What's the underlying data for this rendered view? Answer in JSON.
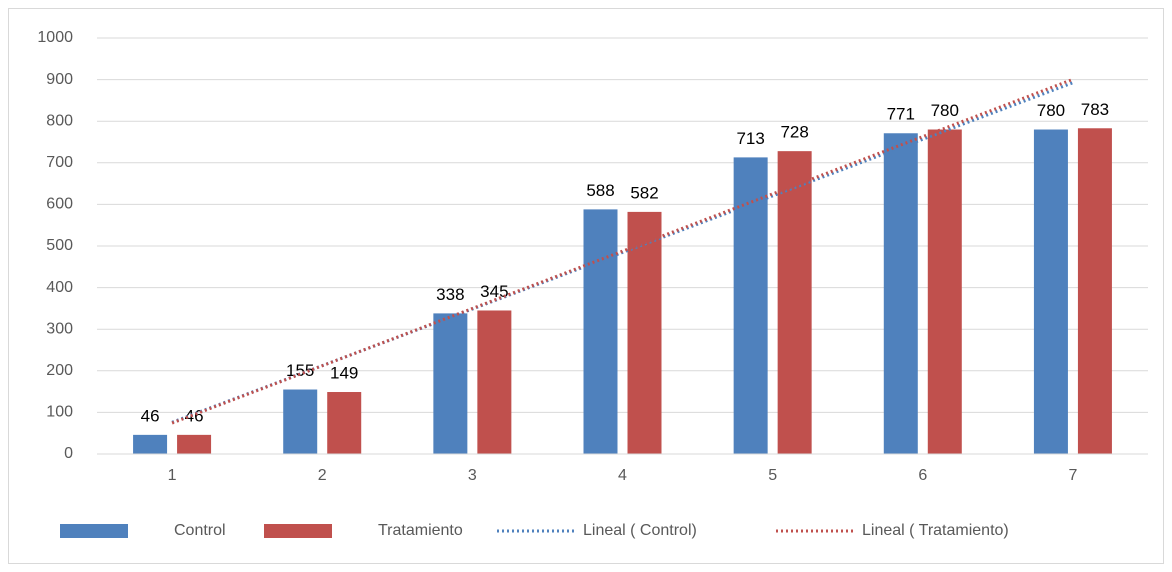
{
  "chart_data": {
    "type": "bar",
    "categories": [
      "1",
      "2",
      "3",
      "4",
      "5",
      "6",
      "7"
    ],
    "series": [
      {
        "name": "Control",
        "color": "#4f81bd",
        "values": [
          46,
          155,
          338,
          588,
          713,
          771,
          780
        ],
        "trendline": {
          "name": "Lineal ( Control)"
        }
      },
      {
        "name": "Tratamiento",
        "color": "#c0504d",
        "values": [
          46,
          149,
          345,
          582,
          728,
          780,
          783
        ],
        "trendline": {
          "name": "Lineal ( Tratamiento)"
        }
      }
    ],
    "ylim": [
      0,
      1000
    ],
    "yticks": [
      0,
      100,
      200,
      300,
      400,
      500,
      600,
      700,
      800,
      900,
      1000
    ],
    "grid": true,
    "legend": "bottom",
    "data_labels": true
  }
}
